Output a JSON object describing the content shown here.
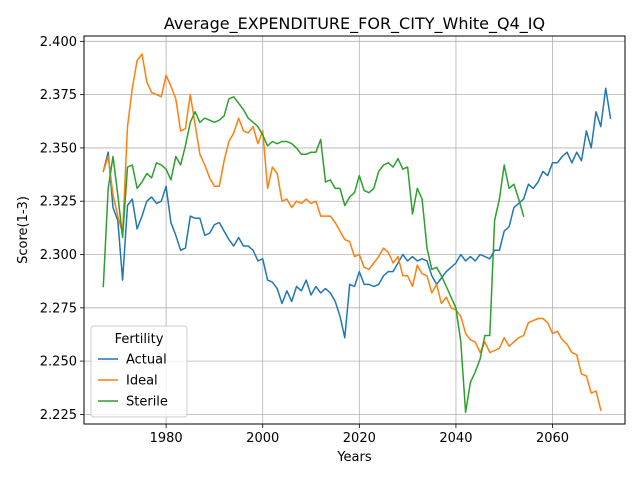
{
  "chart_data": {
    "type": "line",
    "title": "Average_EXPENDITURE_FOR_CITY_White_Q4_IQ",
    "xlabel": "Years",
    "ylabel": "Score(1-3)",
    "xlim": [
      1963,
      2075
    ],
    "ylim": [
      2.2205,
      2.4025
    ],
    "xticks": [
      1980,
      2000,
      2020,
      2040,
      2060
    ],
    "yticks": [
      2.225,
      2.25,
      2.275,
      2.3,
      2.325,
      2.35,
      2.375,
      2.4
    ],
    "ytick_labels": [
      "2.225",
      "2.250",
      "2.275",
      "2.300",
      "2.325",
      "2.350",
      "2.375",
      "2.400"
    ],
    "grid": true,
    "legend": {
      "title": "Fertility",
      "position": "lower-left"
    },
    "series": [
      {
        "name": "Actual",
        "color": "#1f77b4",
        "x_start": 1967,
        "values": [
          2.339,
          2.348,
          2.322,
          2.316,
          2.288,
          2.323,
          2.326,
          2.312,
          2.318,
          2.325,
          2.327,
          2.324,
          2.325,
          2.332,
          2.315,
          2.309,
          2.302,
          2.303,
          2.318,
          2.317,
          2.317,
          2.309,
          2.31,
          2.314,
          2.315,
          2.311,
          2.307,
          2.304,
          2.308,
          2.304,
          2.304,
          2.302,
          2.297,
          2.298,
          2.288,
          2.287,
          2.284,
          2.277,
          2.283,
          2.278,
          2.285,
          2.283,
          2.288,
          2.281,
          2.285,
          2.282,
          2.284,
          2.282,
          2.278,
          2.271,
          2.261,
          2.286,
          2.285,
          2.292,
          2.286,
          2.286,
          2.285,
          2.286,
          2.29,
          2.292,
          2.292,
          2.296,
          2.3,
          2.297,
          2.299,
          2.297,
          2.298,
          2.297,
          2.29,
          2.286,
          2.289,
          2.292,
          2.294,
          2.296,
          2.3,
          2.297,
          2.299,
          2.297,
          2.3,
          2.299,
          2.298,
          2.302,
          2.302,
          2.311,
          2.313,
          2.322,
          2.324,
          2.326,
          2.333,
          2.331,
          2.334,
          2.339,
          2.337,
          2.343,
          2.343,
          2.346,
          2.348,
          2.343,
          2.348,
          2.344,
          2.358,
          2.35,
          2.367,
          2.36,
          2.378,
          2.364
        ]
      },
      {
        "name": "Ideal",
        "color": "#ff7f0e",
        "x_start": 1967,
        "values": [
          2.339,
          2.346,
          2.328,
          2.318,
          2.31,
          2.36,
          2.378,
          2.391,
          2.394,
          2.381,
          2.376,
          2.375,
          2.374,
          2.384,
          2.379,
          2.373,
          2.358,
          2.359,
          2.375,
          2.361,
          2.347,
          2.342,
          2.336,
          2.332,
          2.332,
          2.344,
          2.353,
          2.357,
          2.364,
          2.358,
          2.357,
          2.36,
          2.352,
          2.358,
          2.331,
          2.341,
          2.338,
          2.325,
          2.326,
          2.322,
          2.325,
          2.324,
          2.326,
          2.324,
          2.325,
          2.318,
          2.318,
          2.318,
          2.315,
          2.311,
          2.307,
          2.306,
          2.299,
          2.3,
          2.294,
          2.293,
          2.296,
          2.299,
          2.303,
          2.301,
          2.296,
          2.299,
          2.29,
          2.29,
          2.285,
          2.295,
          2.291,
          2.29,
          2.282,
          2.286,
          2.277,
          2.28,
          2.275,
          2.274,
          2.271,
          2.263,
          2.26,
          2.259,
          2.254,
          2.259,
          2.254,
          2.255,
          2.256,
          2.261,
          2.257,
          2.259,
          2.261,
          2.262,
          2.268,
          2.269,
          2.27,
          2.27,
          2.268,
          2.263,
          2.264,
          2.26,
          2.258,
          2.254,
          2.253,
          2.244,
          2.243,
          2.235,
          2.236,
          2.227
        ]
      },
      {
        "name": "Sterile",
        "color": "#2ca02c",
        "x_start": 1967,
        "values": [
          2.285,
          2.331,
          2.346,
          2.328,
          2.308,
          2.341,
          2.342,
          2.331,
          2.334,
          2.338,
          2.336,
          2.343,
          2.342,
          2.34,
          2.335,
          2.346,
          2.342,
          2.351,
          2.362,
          2.367,
          2.362,
          2.364,
          2.363,
          2.362,
          2.363,
          2.365,
          2.373,
          2.374,
          2.371,
          2.368,
          2.364,
          2.362,
          2.36,
          2.356,
          2.351,
          2.353,
          2.352,
          2.353,
          2.353,
          2.352,
          2.35,
          2.347,
          2.347,
          2.348,
          2.348,
          2.354,
          2.334,
          2.335,
          2.331,
          2.331,
          2.323,
          2.327,
          2.329,
          2.337,
          2.33,
          2.329,
          2.331,
          2.339,
          2.342,
          2.343,
          2.341,
          2.345,
          2.34,
          2.341,
          2.319,
          2.331,
          2.326,
          2.303,
          2.293,
          2.294,
          2.29,
          2.285,
          2.28,
          2.275,
          2.259,
          2.226,
          2.24,
          2.245,
          2.251,
          2.262,
          2.262,
          2.316,
          2.326,
          2.342,
          2.331,
          2.333,
          2.326,
          2.318
        ]
      }
    ]
  }
}
